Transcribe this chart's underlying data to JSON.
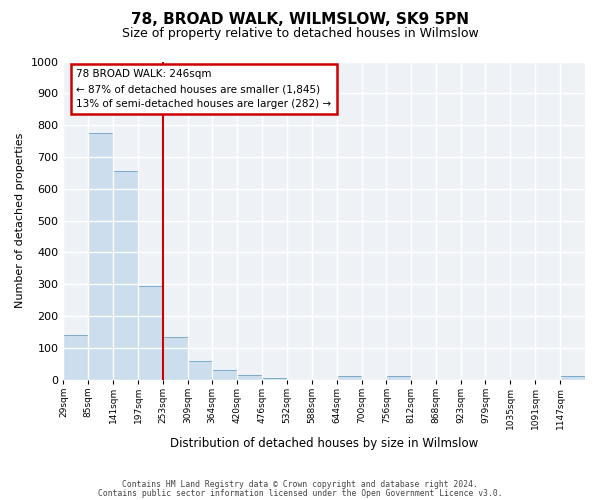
{
  "title": "78, BROAD WALK, WILMSLOW, SK9 5PN",
  "subtitle": "Size of property relative to detached houses in Wilmslow",
  "xlabel": "Distribution of detached houses by size in Wilmslow",
  "ylabel": "Number of detached properties",
  "bin_labels": [
    "29sqm",
    "85sqm",
    "141sqm",
    "197sqm",
    "253sqm",
    "309sqm",
    "364sqm",
    "420sqm",
    "476sqm",
    "532sqm",
    "588sqm",
    "644sqm",
    "700sqm",
    "756sqm",
    "812sqm",
    "868sqm",
    "923sqm",
    "979sqm",
    "1035sqm",
    "1091sqm",
    "1147sqm"
  ],
  "bar_heights": [
    140,
    775,
    655,
    295,
    135,
    57,
    30,
    15,
    5,
    0,
    0,
    10,
    0,
    10,
    0,
    0,
    0,
    0,
    0,
    0,
    10
  ],
  "bar_color": "#ccdded",
  "bar_edge_color": "#7aaac8",
  "bin_edges": [
    29,
    85,
    141,
    197,
    253,
    309,
    364,
    420,
    476,
    532,
    588,
    644,
    700,
    756,
    812,
    868,
    923,
    979,
    1035,
    1091,
    1147,
    1203
  ],
  "annotation_title": "78 BROAD WALK: 246sqm",
  "annotation_line1": "← 87% of detached houses are smaller (1,845)",
  "annotation_line2": "13% of semi-detached houses are larger (282) →",
  "annotation_box_color": "#cc0000",
  "vline_color": "#cc0000",
  "ylim": [
    0,
    1000
  ],
  "yticks": [
    0,
    100,
    200,
    300,
    400,
    500,
    600,
    700,
    800,
    900,
    1000
  ],
  "footer1": "Contains HM Land Registry data © Crown copyright and database right 2024.",
  "footer2": "Contains public sector information licensed under the Open Government Licence v3.0.",
  "bg_color": "#ffffff",
  "plot_bg_color": "#eef2f7",
  "grid_color": "#ffffff",
  "title_fontsize": 11,
  "subtitle_fontsize": 9
}
